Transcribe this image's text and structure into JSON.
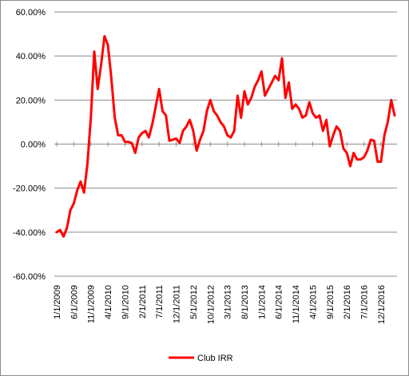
{
  "chart_data": {
    "type": "line",
    "title": "",
    "xlabel": "",
    "ylabel": "",
    "ylim": [
      -0.6,
      0.6
    ],
    "yticks": [
      -0.6,
      -0.4,
      -0.2,
      0.0,
      0.2,
      0.4,
      0.6
    ],
    "ytick_labels": [
      "-60.00%",
      "-40.00%",
      "-20.00%",
      "0.00%",
      "20.00%",
      "40.00%",
      "60.00%"
    ],
    "xtick_labels": [
      "1/1/2009",
      "6/1/2009",
      "11/1/2009",
      "4/1/2010",
      "9/1/2010",
      "2/1/2011",
      "7/1/2011",
      "12/1/2011",
      "5/1/2012",
      "10/1/2012",
      "3/1/2013",
      "8/1/2013",
      "1/1/2014",
      "6/1/2014",
      "11/1/2014",
      "4/1/2015",
      "9/1/2015",
      "2/1/2016",
      "7/1/2016",
      "12/1/2016"
    ],
    "grid": true,
    "legend_position": "bottom",
    "line_color": "#ff0000",
    "series": [
      {
        "name": "Club IRR",
        "values": [
          -0.4,
          -0.39,
          -0.42,
          -0.38,
          -0.3,
          -0.27,
          -0.21,
          -0.17,
          -0.22,
          -0.09,
          0.12,
          0.42,
          0.25,
          0.36,
          0.49,
          0.45,
          0.3,
          0.12,
          0.04,
          0.04,
          0.01,
          0.01,
          0.005,
          -0.04,
          0.03,
          0.05,
          0.06,
          0.03,
          0.09,
          0.17,
          0.25,
          0.15,
          0.13,
          0.015,
          0.02,
          0.025,
          0.005,
          0.06,
          0.08,
          0.11,
          0.06,
          -0.03,
          0.02,
          0.06,
          0.15,
          0.2,
          0.15,
          0.13,
          0.1,
          0.08,
          0.04,
          0.03,
          0.06,
          0.22,
          0.12,
          0.24,
          0.18,
          0.21,
          0.26,
          0.29,
          0.33,
          0.22,
          0.25,
          0.28,
          0.31,
          0.29,
          0.39,
          0.21,
          0.28,
          0.16,
          0.18,
          0.16,
          0.12,
          0.13,
          0.19,
          0.14,
          0.12,
          0.13,
          0.06,
          0.11,
          -0.01,
          0.04,
          0.08,
          0.06,
          -0.02,
          -0.04,
          -0.1,
          -0.04,
          -0.07,
          -0.07,
          -0.06,
          -0.03,
          0.02,
          0.015,
          -0.08,
          -0.08,
          0.04,
          0.1,
          0.2,
          0.13
        ]
      }
    ]
  }
}
